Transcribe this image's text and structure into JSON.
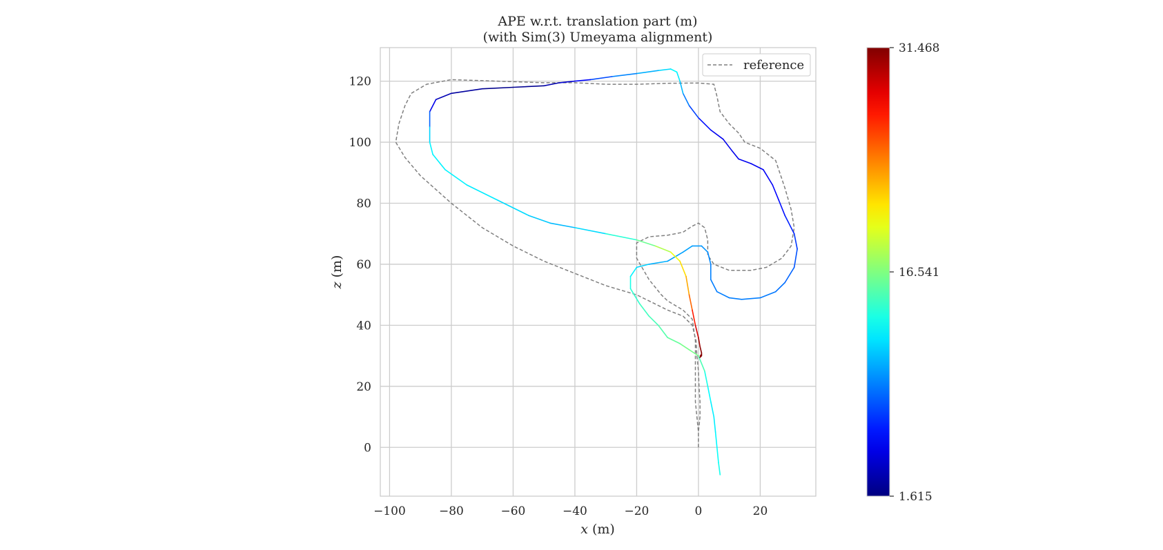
{
  "chart_data": {
    "type": "line",
    "title": "APE w.r.t. translation part (m)",
    "subtitle": "(with Sim(3) Umeyama alignment)",
    "xlabel_var": "x",
    "xlabel_unit": "(m)",
    "ylabel_var": "z",
    "ylabel_unit": "(m)",
    "xlim": [
      -103,
      38
    ],
    "ylim": [
      -16,
      131
    ],
    "xticks": [
      -100,
      -80,
      -60,
      -40,
      -20,
      0,
      20
    ],
    "xtick_labels": [
      "−100",
      "−80",
      "−60",
      "−40",
      "−20",
      "0",
      "20"
    ],
    "yticks": [
      0,
      20,
      40,
      60,
      80,
      100,
      120
    ],
    "ytick_labels": [
      "0",
      "20",
      "40",
      "60",
      "80",
      "100",
      "120"
    ],
    "grid": true,
    "legend": {
      "position": "top-right",
      "entries": [
        "reference"
      ]
    },
    "colorbar": {
      "colormap": "jet",
      "min": 1.615,
      "max": 31.468,
      "tick_values": [
        1.615,
        16.541,
        31.468
      ],
      "tick_labels": [
        "1.615",
        "16.541",
        "31.468"
      ]
    },
    "reference": {
      "name": "reference",
      "color": "#7f7f7f",
      "style": "dashed",
      "points": [
        [
          0,
          0
        ],
        [
          0,
          5
        ],
        [
          0.5,
          10
        ],
        [
          0.5,
          15
        ],
        [
          0.2,
          20
        ],
        [
          0,
          25
        ],
        [
          -0.5,
          30
        ],
        [
          -0.8,
          35
        ],
        [
          -2,
          40
        ],
        [
          -5,
          43
        ],
        [
          -10,
          45
        ],
        [
          -20,
          50
        ],
        [
          -30,
          53
        ],
        [
          -40,
          57
        ],
        [
          -50,
          61
        ],
        [
          -60,
          66
        ],
        [
          -70,
          72
        ],
        [
          -80,
          80
        ],
        [
          -90,
          89
        ],
        [
          -95,
          95
        ],
        [
          -98,
          100
        ],
        [
          -97,
          106
        ],
        [
          -95,
          112
        ],
        [
          -93,
          116
        ],
        [
          -88,
          119
        ],
        [
          -80,
          120.5
        ],
        [
          -65,
          120
        ],
        [
          -50,
          119.5
        ],
        [
          -40,
          119.5
        ],
        [
          -30,
          119
        ],
        [
          -20,
          119
        ],
        [
          -10,
          119.3
        ],
        [
          0,
          119.4
        ],
        [
          5,
          119
        ],
        [
          6,
          115
        ],
        [
          7,
          110
        ],
        [
          10,
          106
        ],
        [
          13,
          103
        ],
        [
          15,
          100
        ],
        [
          20,
          98
        ],
        [
          25,
          94
        ],
        [
          28,
          85
        ],
        [
          30,
          78
        ],
        [
          31,
          72
        ],
        [
          30,
          66
        ],
        [
          27,
          62
        ],
        [
          22,
          59
        ],
        [
          17,
          58
        ],
        [
          10,
          58
        ],
        [
          5,
          60
        ],
        [
          3,
          63
        ],
        [
          3,
          68
        ],
        [
          2,
          72
        ],
        [
          0,
          73.5
        ],
        [
          -2,
          72.5
        ],
        [
          -5,
          70.5
        ],
        [
          -10,
          69.5
        ],
        [
          -16,
          69
        ],
        [
          -20,
          67
        ],
        [
          -20,
          62
        ],
        [
          -16,
          55
        ],
        [
          -12,
          50
        ],
        [
          -10,
          48
        ],
        [
          -5,
          45
        ],
        [
          -2,
          42
        ],
        [
          -1,
          35
        ],
        [
          -1,
          28
        ],
        [
          -1,
          20
        ],
        [
          -1,
          15
        ],
        [
          -0.5,
          10
        ],
        [
          0,
          5
        ],
        [
          0,
          0
        ]
      ]
    },
    "estimate": {
      "points": [
        [
          7,
          -9
        ],
        [
          6.5,
          -5
        ],
        [
          6,
          0
        ],
        [
          5.5,
          5
        ],
        [
          5,
          10
        ],
        [
          4,
          15
        ],
        [
          3,
          20
        ],
        [
          2,
          25
        ],
        [
          0,
          30
        ],
        [
          -3,
          32
        ],
        [
          -6,
          34
        ],
        [
          -10,
          36
        ],
        [
          -13,
          40
        ],
        [
          -16,
          43
        ],
        [
          -19,
          47
        ],
        [
          -22,
          52
        ],
        [
          -22,
          56
        ],
        [
          -20,
          59
        ],
        [
          -16,
          60
        ],
        [
          -10,
          61
        ],
        [
          -5,
          64
        ],
        [
          -2,
          66
        ],
        [
          1,
          66
        ],
        [
          3,
          64
        ],
        [
          4,
          60
        ],
        [
          4,
          55
        ],
        [
          6,
          51
        ],
        [
          10,
          49
        ],
        [
          14,
          48.5
        ],
        [
          20,
          49
        ],
        [
          25,
          51
        ],
        [
          28,
          54
        ],
        [
          31,
          59
        ],
        [
          32,
          65
        ],
        [
          31,
          70
        ],
        [
          28,
          76
        ],
        [
          26,
          81
        ],
        [
          24,
          86
        ],
        [
          21,
          91
        ],
        [
          17,
          93
        ],
        [
          13,
          94.5
        ],
        [
          11,
          97
        ],
        [
          8,
          101
        ],
        [
          4,
          104
        ],
        [
          0,
          108
        ],
        [
          -3,
          112
        ],
        [
          -5,
          116
        ],
        [
          -6,
          120
        ],
        [
          -7,
          123
        ],
        [
          -9,
          124
        ],
        [
          -13,
          123.5
        ],
        [
          -20,
          122.5
        ],
        [
          -28,
          121.5
        ],
        [
          -35,
          120.5
        ],
        [
          -40,
          120
        ],
        [
          -45,
          119.5
        ],
        [
          -50,
          118.5
        ],
        [
          -60,
          118
        ],
        [
          -70,
          117.5
        ],
        [
          -80,
          116
        ],
        [
          -85,
          114
        ],
        [
          -87,
          110
        ],
        [
          -87,
          105
        ],
        [
          -87,
          100
        ],
        [
          -86,
          96
        ],
        [
          -82,
          91
        ],
        [
          -75,
          86
        ],
        [
          -65,
          81
        ],
        [
          -55,
          76
        ],
        [
          -48,
          73.5
        ],
        [
          -40,
          72
        ],
        [
          -30,
          70
        ],
        [
          -20,
          68
        ],
        [
          -14,
          66
        ],
        [
          -9,
          64
        ],
        [
          -6,
          61
        ],
        [
          -4,
          56
        ],
        [
          -3,
          50
        ],
        [
          -2,
          45
        ],
        [
          -1,
          40
        ],
        [
          0,
          36
        ],
        [
          0.5,
          33
        ],
        [
          1,
          31
        ],
        [
          1,
          30
        ],
        [
          0.5,
          29.5
        ],
        [
          1,
          30.5
        ],
        [
          0.6,
          30
        ]
      ],
      "ape": [
        13.5,
        13.2,
        12.8,
        12.5,
        12.2,
        12.5,
        13.0,
        14.0,
        16.0,
        16.5,
        16.0,
        15.5,
        15.0,
        14.8,
        14.5,
        14.0,
        13.0,
        12.0,
        11.0,
        10.0,
        10.2,
        10.0,
        9.8,
        9.5,
        9.2,
        9.0,
        9.0,
        9.0,
        9.0,
        9.0,
        8.8,
        8.5,
        8.0,
        7.5,
        6.5,
        6.0,
        5.5,
        5.2,
        5.0,
        5.0,
        4.8,
        4.8,
        4.8,
        5.0,
        6.5,
        8.0,
        10.0,
        11.5,
        13.0,
        12.5,
        11.0,
        10.0,
        8.5,
        6.5,
        4.5,
        3.5,
        2.5,
        1.8,
        2.2,
        2.8,
        3.5,
        6.0,
        10.5,
        12.5,
        12.5,
        12.5,
        12.5,
        12.0,
        11.5,
        11.0,
        10.5,
        13.0,
        15.0,
        17.0,
        19.0,
        20.5,
        22.0,
        23.5,
        26.0,
        28.0,
        30.0,
        31.0,
        31.4,
        31.468,
        31.4,
        31.3,
        31.2
      ]
    }
  }
}
